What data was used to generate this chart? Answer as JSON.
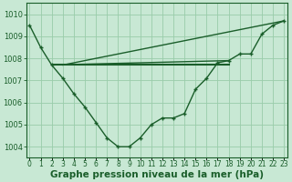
{
  "main_line": [
    1009.5,
    1008.5,
    1007.7,
    1007.1,
    1006.4,
    1005.8,
    1005.1,
    1004.4,
    1004.0,
    1004.0,
    1004.4,
    1005.0,
    1005.3,
    1005.3,
    1005.5,
    1006.6,
    1007.1,
    1007.8,
    1007.9,
    1008.2,
    1008.2,
    1009.1,
    1009.5,
    1009.7
  ],
  "flat_line_y": 1007.7,
  "flat_line_x_start": 2,
  "flat_line_x_end": 18,
  "trend_line_y": [
    1007.7,
    1009.7
  ],
  "trend_line_x": [
    3,
    23
  ],
  "trend_line2_y": [
    1007.7,
    1007.9
  ],
  "trend_line2_x": [
    2,
    18
  ],
  "yticks": [
    1004,
    1005,
    1006,
    1007,
    1008,
    1009,
    1010
  ],
  "ylim": [
    1003.5,
    1010.5
  ],
  "xlim": [
    -0.3,
    23.3
  ],
  "bg_color": "#c8e8d4",
  "grid_color": "#99ccaa",
  "line_color": "#1a5e2a",
  "xlabel": "Graphe pression niveau de la mer (hPa)",
  "xlabel_fontsize": 7.5,
  "y_label_fontsize": 6,
  "x_label_fontsize": 5.5
}
